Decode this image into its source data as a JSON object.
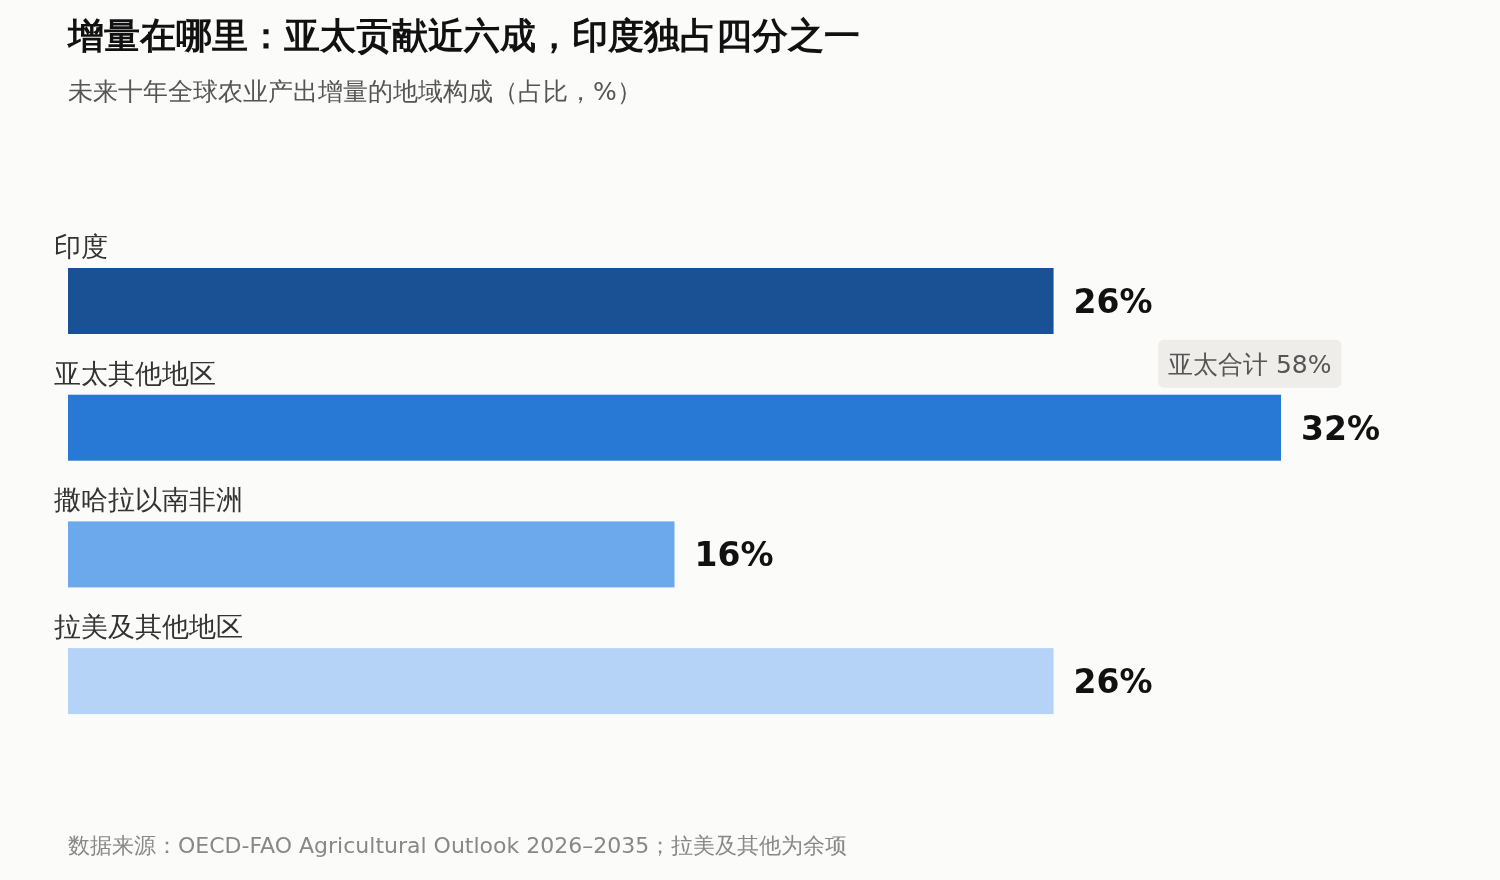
{
  "chart_data": {
    "type": "bar",
    "orientation": "horizontal",
    "title": "增量在哪里：亚太贡献近六成，印度独占四分之一",
    "subtitle": "未来十年全球农业产出增量的地域构成（占比，%）",
    "categories": [
      "印度",
      "亚太其他地区",
      "撒哈拉以南非洲",
      "拉美及其他地区"
    ],
    "values": [
      26,
      32,
      16,
      26
    ],
    "colors": [
      "#1a5194",
      "#2878d6",
      "#6ca9ec",
      "#b5d3f6"
    ],
    "value_labels": [
      "26%",
      "32%",
      "16%",
      "26%"
    ],
    "annotations": [
      "亚太合计 58%",
      "数据来源：OECD-FAO Agricultural Outlook 2026–2035；拉美及其他为余项"
    ]
  }
}
